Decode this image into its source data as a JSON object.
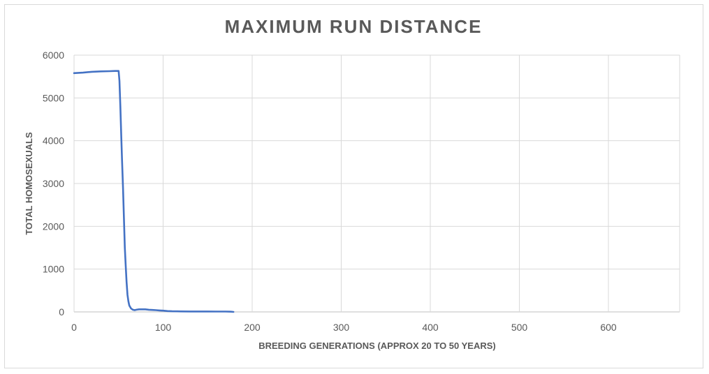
{
  "chart_data": {
    "type": "line",
    "title": "MAXIMUM RUN DISTANCE",
    "xlabel": "BREEDING GENERATIONS (APPROX 20 TO 50 YEARS)",
    "ylabel": "TOTAL HOMOSEXUALS",
    "xlim": [
      0,
      680
    ],
    "ylim": [
      0,
      6000
    ],
    "x_ticks": [
      0,
      100,
      200,
      300,
      400,
      500,
      600
    ],
    "y_ticks": [
      0,
      1000,
      2000,
      3000,
      4000,
      5000,
      6000
    ],
    "grid": true,
    "legend": "none",
    "series": [
      {
        "color": "#4472c4",
        "points": [
          [
            0,
            5580
          ],
          [
            10,
            5590
          ],
          [
            20,
            5610
          ],
          [
            30,
            5620
          ],
          [
            40,
            5625
          ],
          [
            46,
            5630
          ],
          [
            50,
            5630
          ],
          [
            51,
            5400
          ],
          [
            52,
            4800
          ],
          [
            53,
            4100
          ],
          [
            54,
            3500
          ],
          [
            55,
            2900
          ],
          [
            56,
            2200
          ],
          [
            57,
            1500
          ],
          [
            58,
            1100
          ],
          [
            59,
            700
          ],
          [
            60,
            400
          ],
          [
            61,
            250
          ],
          [
            62,
            150
          ],
          [
            64,
            80
          ],
          [
            66,
            50
          ],
          [
            68,
            40
          ],
          [
            70,
            50
          ],
          [
            73,
            60
          ],
          [
            76,
            60
          ],
          [
            80,
            60
          ],
          [
            84,
            50
          ],
          [
            88,
            45
          ],
          [
            92,
            40
          ],
          [
            96,
            35
          ],
          [
            100,
            30
          ],
          [
            105,
            20
          ],
          [
            110,
            15
          ],
          [
            120,
            12
          ],
          [
            130,
            10
          ],
          [
            140,
            10
          ],
          [
            150,
            10
          ],
          [
            160,
            8
          ],
          [
            170,
            8
          ],
          [
            176,
            5
          ],
          [
            179,
            0
          ]
        ]
      }
    ]
  }
}
